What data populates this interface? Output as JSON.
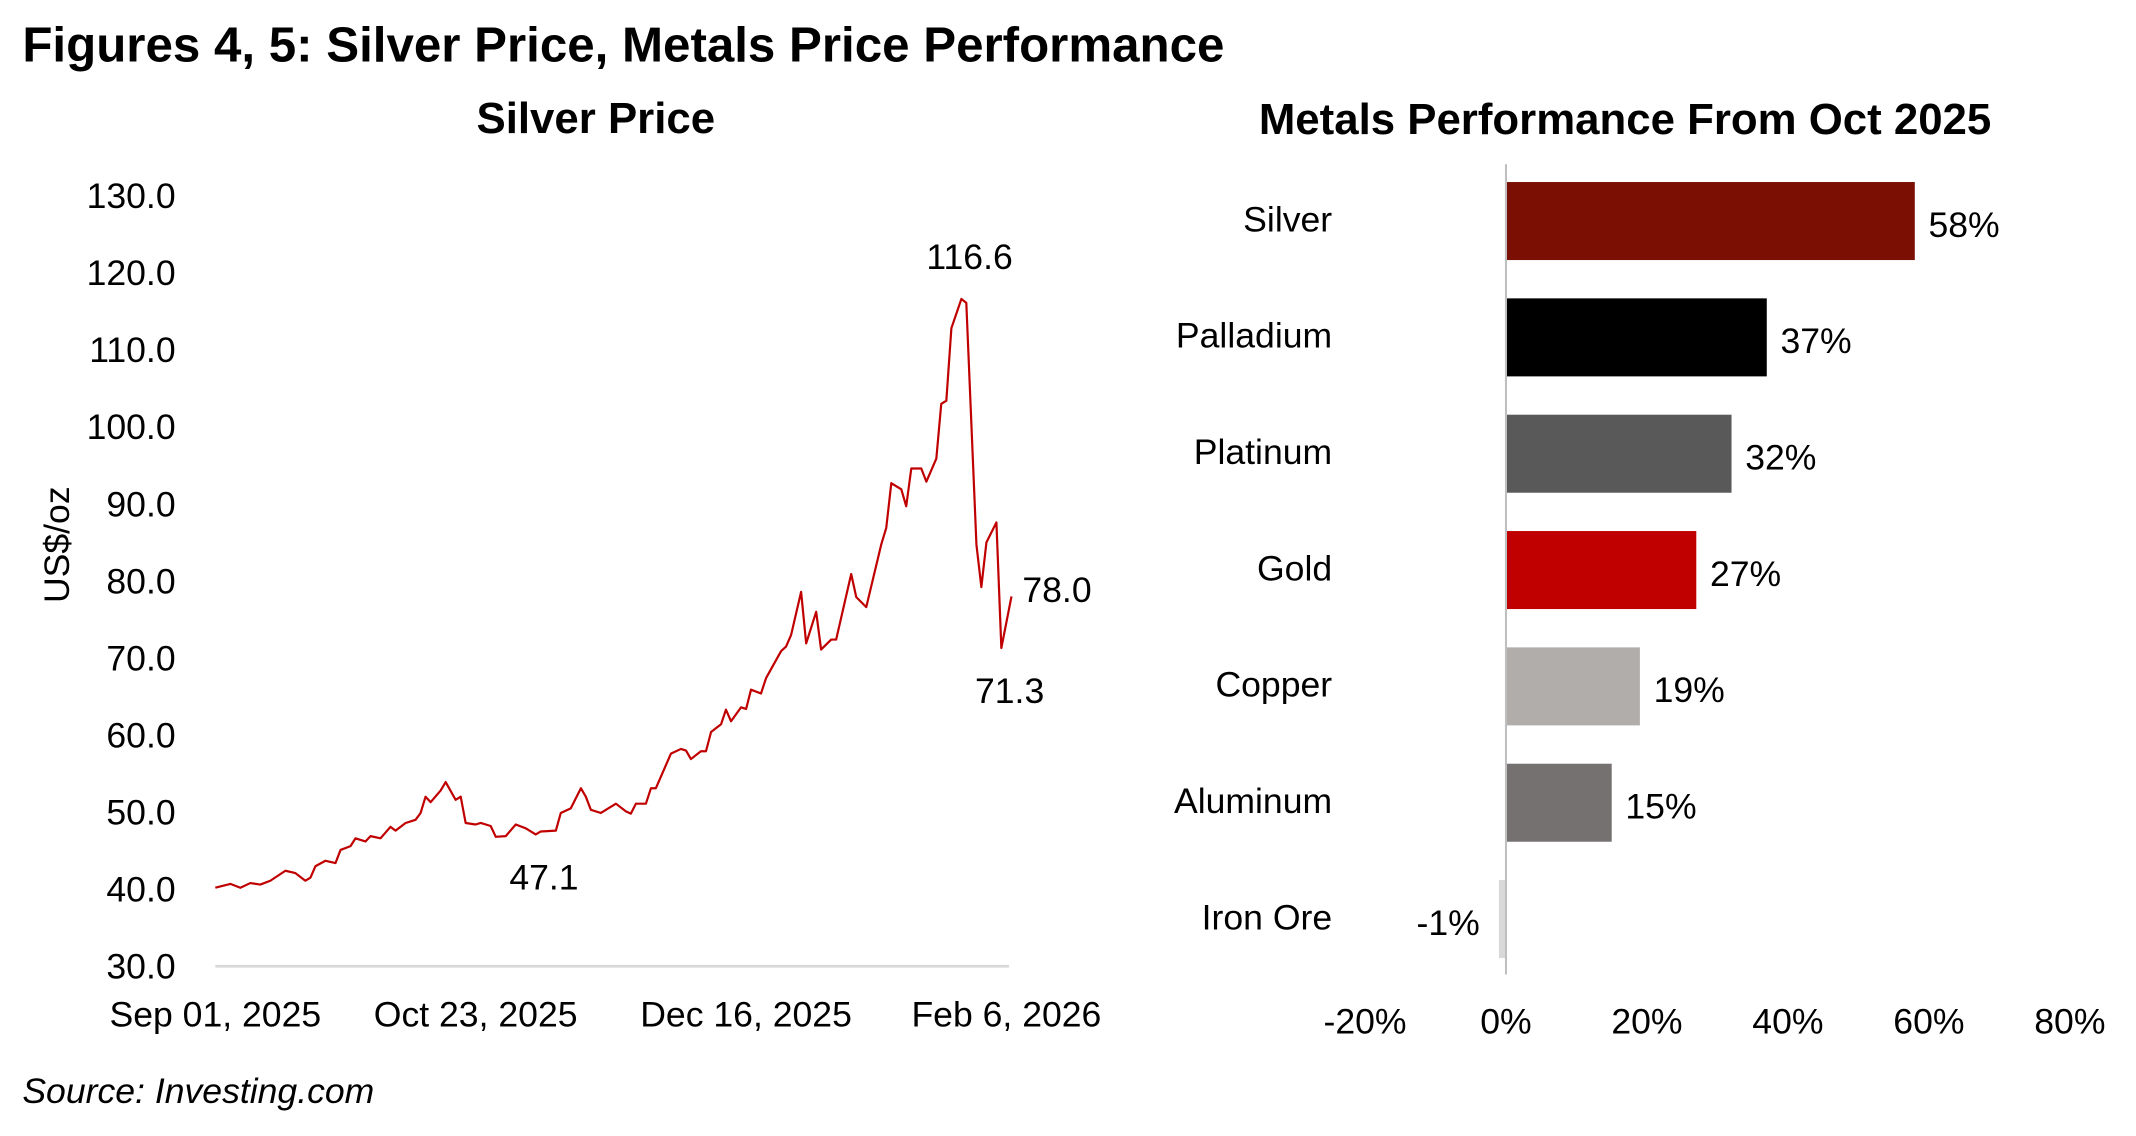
{
  "figure_title": "Figures 4, 5: Silver Price, Metals Price Performance",
  "source": "Source: Investing.com",
  "chart_data": [
    {
      "type": "line",
      "title": "Silver Price",
      "ylabel": "US$/oz",
      "xlabel": "",
      "ylim": [
        30,
        130
      ],
      "yticks": [
        "30.0",
        "40.0",
        "50.0",
        "60.0",
        "70.0",
        "80.0",
        "90.0",
        "100.0",
        "110.0",
        "120.0",
        "130.0"
      ],
      "xticks": [
        {
          "date": "2025-09-01",
          "label": "Sep 01, 2025"
        },
        {
          "date": "2025-10-23",
          "label": "Oct 23, 2025"
        },
        {
          "date": "2025-12-16",
          "label": "Dec 16, 2025"
        },
        {
          "date": "2026-02-06",
          "label": "Feb 6, 2026"
        }
      ],
      "color": "#c00000",
      "grid": false,
      "annotations": [
        {
          "date": "2025-11-04",
          "value": 47.1,
          "label": "47.1",
          "position": "below"
        },
        {
          "date": "2026-01-28",
          "value": 116.6,
          "label": "116.6",
          "position": "above"
        },
        {
          "date": "2026-02-05",
          "value": 71.3,
          "label": "71.3",
          "position": "below"
        },
        {
          "date": "2026-02-07",
          "value": 78.0,
          "label": "78.0",
          "position": "right"
        }
      ],
      "x": [
        "2025-09-01",
        "2025-09-04",
        "2025-09-06",
        "2025-09-08",
        "2025-09-10",
        "2025-09-12",
        "2025-09-15",
        "2025-09-17",
        "2025-09-19",
        "2025-09-20",
        "2025-09-21",
        "2025-09-23",
        "2025-09-25",
        "2025-09-26",
        "2025-09-28",
        "2025-09-29",
        "2025-10-01",
        "2025-10-02",
        "2025-10-04",
        "2025-10-06",
        "2025-10-07",
        "2025-10-09",
        "2025-10-11",
        "2025-10-12",
        "2025-10-13",
        "2025-10-14",
        "2025-10-16",
        "2025-10-17",
        "2025-10-19",
        "2025-10-20",
        "2025-10-21",
        "2025-10-23",
        "2025-10-24",
        "2025-10-26",
        "2025-10-27",
        "2025-10-29",
        "2025-10-31",
        "2025-11-02",
        "2025-11-04",
        "2025-11-05",
        "2025-11-08",
        "2025-11-09",
        "2025-11-11",
        "2025-11-13",
        "2025-11-14",
        "2025-11-15",
        "2025-11-17",
        "2025-11-20",
        "2025-11-22",
        "2025-11-23",
        "2025-11-24",
        "2025-11-26",
        "2025-11-27",
        "2025-11-28",
        "2025-11-30",
        "2025-12-01",
        "2025-12-03",
        "2025-12-04",
        "2025-12-05",
        "2025-12-07",
        "2025-12-08",
        "2025-12-09",
        "2025-12-11",
        "2025-12-12",
        "2025-12-13",
        "2025-12-15",
        "2025-12-16",
        "2025-12-17",
        "2025-12-19",
        "2025-12-20",
        "2025-12-23",
        "2025-12-24",
        "2025-12-25",
        "2025-12-27",
        "2025-12-28",
        "2025-12-30",
        "2025-12-31",
        "2026-01-02",
        "2026-01-03",
        "2026-01-06",
        "2026-01-07",
        "2026-01-09",
        "2026-01-12",
        "2026-01-13",
        "2026-01-14",
        "2026-01-16",
        "2026-01-17",
        "2026-01-18",
        "2026-01-20",
        "2026-01-21",
        "2026-01-23",
        "2026-01-24",
        "2026-01-25",
        "2026-01-26",
        "2026-01-28",
        "2026-01-29",
        "2026-01-31",
        "2026-02-01",
        "2026-02-02",
        "2026-02-04",
        "2026-02-05",
        "2026-02-07"
      ],
      "y": [
        40.2,
        40.7,
        40.2,
        40.8,
        40.6,
        41.1,
        42.4,
        42.1,
        41.1,
        41.5,
        43.0,
        43.7,
        43.4,
        45.1,
        45.6,
        46.6,
        46.2,
        46.9,
        46.6,
        48.1,
        47.6,
        48.6,
        49.0,
        49.9,
        52.0,
        51.3,
        52.8,
        53.9,
        51.6,
        52.0,
        48.6,
        48.4,
        48.6,
        48.2,
        46.8,
        46.9,
        48.4,
        47.9,
        47.1,
        47.5,
        47.6,
        49.9,
        50.5,
        53.1,
        52.0,
        50.3,
        49.9,
        51.1,
        50.1,
        49.8,
        51.1,
        51.1,
        53.1,
        53.1,
        56.1,
        57.6,
        58.2,
        58.0,
        56.9,
        57.9,
        57.9,
        60.4,
        61.4,
        63.3,
        61.8,
        63.6,
        63.4,
        65.9,
        65.4,
        67.4,
        70.9,
        71.5,
        73.0,
        78.6,
        71.9,
        76.0,
        71.1,
        72.4,
        72.4,
        80.9,
        77.9,
        76.6,
        84.7,
        86.9,
        92.7,
        91.9,
        89.7,
        94.6,
        94.6,
        92.9,
        95.9,
        103.0,
        103.4,
        112.8,
        116.6,
        116.1,
        84.7,
        79.2,
        85.0,
        87.6,
        71.3,
        78.0
      ]
    },
    {
      "type": "bar",
      "orientation": "horizontal",
      "title": "Metals Performance From Oct 2025",
      "xlim": [
        -20,
        80
      ],
      "xticks": [
        "-20%",
        "0%",
        "20%",
        "40%",
        "60%",
        "80%"
      ],
      "grid": false,
      "categories": [
        "Silver",
        "Palladium",
        "Platinum",
        "Gold",
        "Copper",
        "Aluminum",
        "Iron Ore"
      ],
      "values": [
        58,
        37,
        32,
        27,
        19,
        15,
        -1
      ],
      "data_labels": [
        "58%",
        "37%",
        "32%",
        "27%",
        "19%",
        "15%",
        "-1%"
      ],
      "colors": [
        "#7b0f03",
        "#000000",
        "#595959",
        "#c00000",
        "#b0adab",
        "#767171",
        "#d9d9d9"
      ]
    }
  ]
}
